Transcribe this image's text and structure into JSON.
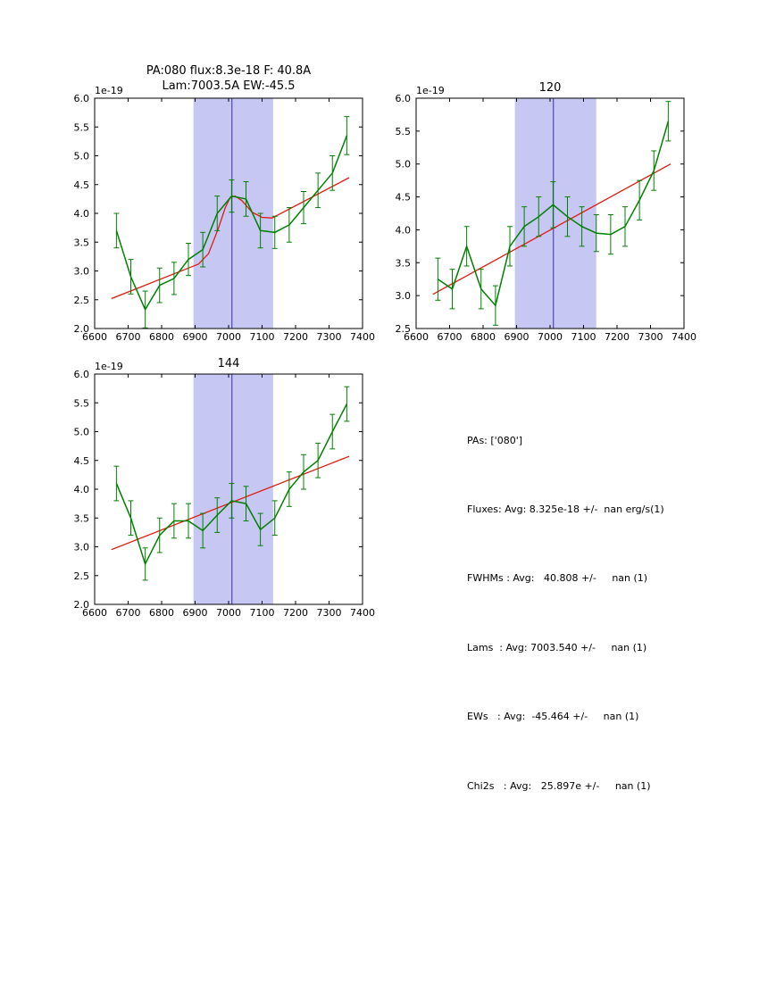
{
  "colors": {
    "data": "#008000",
    "fit": "#e01b10",
    "band": "#c7c7f3",
    "vline": "#3030b0",
    "axis": "#000000"
  },
  "chart_data": [
    {
      "type": "line",
      "title_line1": "PA:080 flux:8.3e-18 F: 40.8A",
      "title_line2": "Lam:7003.5A EW:-45.5",
      "offset_label": "1e-19",
      "xlabel": "",
      "ylabel": "",
      "xlim": [
        6600,
        7400
      ],
      "ylim": [
        2.0,
        6.0
      ],
      "xticks": [
        6600,
        6700,
        6800,
        6900,
        7000,
        7100,
        7200,
        7300,
        7400
      ],
      "yticks": [
        2.0,
        2.5,
        3.0,
        3.5,
        4.0,
        4.5,
        5.0,
        5.5,
        6.0
      ],
      "band": [
        6895,
        7133
      ],
      "vline": 7010,
      "data": {
        "x": [
          6665,
          6708,
          6751,
          6794,
          6837,
          6880,
          6923,
          6966,
          7009,
          7052,
          7095,
          7138,
          7181,
          7224,
          7267,
          7310,
          7353
        ],
        "y": [
          3.7,
          2.9,
          2.33,
          2.75,
          2.87,
          3.2,
          3.37,
          4.0,
          4.3,
          4.25,
          3.7,
          3.67,
          3.8,
          4.1,
          4.4,
          4.7,
          5.35
        ],
        "yerr": [
          0.3,
          0.3,
          0.32,
          0.3,
          0.28,
          0.28,
          0.3,
          0.3,
          0.28,
          0.3,
          0.3,
          0.28,
          0.3,
          0.28,
          0.3,
          0.3,
          0.33
        ]
      },
      "fit": {
        "x": [
          6650,
          6880,
          6910,
          6940,
          6970,
          6990,
          7005,
          7020,
          7040,
          7070,
          7100,
          7130,
          7360
        ],
        "y": [
          2.52,
          3.05,
          3.12,
          3.3,
          3.75,
          4.1,
          4.28,
          4.3,
          4.22,
          4.02,
          3.93,
          3.92,
          4.62
        ]
      }
    },
    {
      "type": "line",
      "title": "120",
      "offset_label": "1e-19",
      "xlabel": "",
      "ylabel": "",
      "xlim": [
        6600,
        7400
      ],
      "ylim": [
        2.5,
        6.0
      ],
      "xticks": [
        6600,
        6700,
        6800,
        6900,
        7000,
        7100,
        7200,
        7300,
        7400
      ],
      "yticks": [
        2.5,
        3.0,
        3.5,
        4.0,
        4.5,
        5.0,
        5.5,
        6.0
      ],
      "band": [
        6895,
        7138
      ],
      "vline": 7010,
      "data": {
        "x": [
          6665,
          6708,
          6751,
          6794,
          6837,
          6880,
          6923,
          6966,
          7009,
          7052,
          7095,
          7138,
          7181,
          7224,
          7267,
          7310,
          7353
        ],
        "y": [
          3.25,
          3.1,
          3.75,
          3.1,
          2.85,
          3.75,
          4.05,
          4.2,
          4.38,
          4.2,
          4.05,
          3.95,
          3.93,
          4.05,
          4.45,
          4.9,
          5.65
        ],
        "yerr": [
          0.32,
          0.3,
          0.3,
          0.3,
          0.3,
          0.3,
          0.3,
          0.3,
          0.35,
          0.3,
          0.3,
          0.28,
          0.3,
          0.3,
          0.3,
          0.3,
          0.3
        ]
      },
      "fit": {
        "x": [
          6650,
          7360
        ],
        "y": [
          3.02,
          5.0
        ]
      }
    },
    {
      "type": "line",
      "title": "144",
      "offset_label": "1e-19",
      "xlabel": "",
      "ylabel": "",
      "xlim": [
        6600,
        7400
      ],
      "ylim": [
        2.0,
        6.0
      ],
      "xticks": [
        6600,
        6700,
        6800,
        6900,
        7000,
        7100,
        7200,
        7300,
        7400
      ],
      "yticks": [
        2.0,
        2.5,
        3.0,
        3.5,
        4.0,
        4.5,
        5.0,
        5.5,
        6.0
      ],
      "band": [
        6895,
        7133
      ],
      "vline": 7010,
      "data": {
        "x": [
          6665,
          6708,
          6751,
          6794,
          6837,
          6880,
          6923,
          6966,
          7009,
          7052,
          7095,
          7138,
          7181,
          7224,
          7267,
          7310,
          7353
        ],
        "y": [
          4.1,
          3.5,
          2.7,
          3.2,
          3.45,
          3.45,
          3.28,
          3.55,
          3.8,
          3.75,
          3.3,
          3.5,
          4.0,
          4.3,
          4.5,
          5.0,
          5.48
        ],
        "yerr": [
          0.3,
          0.3,
          0.28,
          0.3,
          0.3,
          0.3,
          0.3,
          0.3,
          0.3,
          0.3,
          0.28,
          0.3,
          0.3,
          0.3,
          0.3,
          0.3,
          0.3
        ]
      },
      "fit": {
        "x": [
          6650,
          7360
        ],
        "y": [
          2.95,
          4.57
        ]
      }
    }
  ],
  "summary": {
    "lines": [
      "PAs: ['080']",
      "Fluxes: Avg: 8.325e-18 +/-  nan erg/s(1)",
      "FWHMs : Avg:   40.808 +/-     nan (1)",
      "Lams  : Avg: 7003.540 +/-     nan (1)",
      "EWs   : Avg:  -45.464 +/-     nan (1)",
      "Chi2s   : Avg:   25.897e +/-     nan (1)"
    ]
  }
}
